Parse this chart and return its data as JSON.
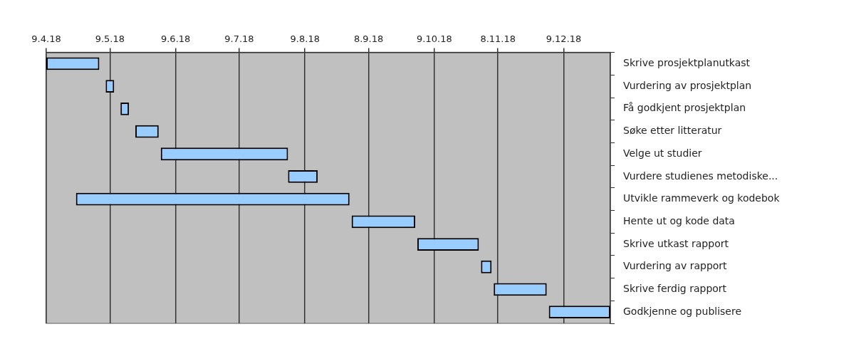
{
  "chart_data": {
    "type": "bar",
    "orientation": "horizontal",
    "categories": [
      "Skrive prosjektplanutkast",
      "Vurdering av prosjektplan",
      "Få godkjent prosjektplan",
      "Søke etter litteratur",
      "Velge ut studier",
      "Vurdere studienes metodiske...",
      "Utvikle rammeverk og kodebok",
      "Hente ut og kode data",
      "Skrive utkast rapport",
      "Vurdering av rapport",
      "Skrive ferdig rapport",
      "Godkjenne og publisere"
    ],
    "base": [
      17630,
      17658,
      17665,
      17672,
      17684,
      17744,
      17644,
      17774,
      17805,
      17835,
      17841,
      17867
    ],
    "values": [
      25,
      4,
      4,
      11,
      60,
      14,
      129,
      30,
      29,
      5,
      25,
      29
    ],
    "color": "#99ccff",
    "xlim": [
      "2018-04-09",
      "2018-12-31"
    ],
    "xticks": [
      {
        "value": "2018-04-09",
        "label": "9.4.18"
      },
      {
        "value": "2018-05-09",
        "label": "9.5.18"
      },
      {
        "value": "2018-06-09",
        "label": "9.6.18"
      },
      {
        "value": "2018-07-09",
        "label": "9.7.18"
      },
      {
        "value": "2018-08-09",
        "label": "9.8.18"
      },
      {
        "value": "2018-09-08",
        "label": "8.9.18"
      },
      {
        "value": "2018-10-09",
        "label": "9.10.18"
      },
      {
        "value": "2018-11-08",
        "label": "8.11.18"
      },
      {
        "value": "2018-12-09",
        "label": "9.12.18"
      }
    ],
    "grid": "x",
    "legend": false
  }
}
